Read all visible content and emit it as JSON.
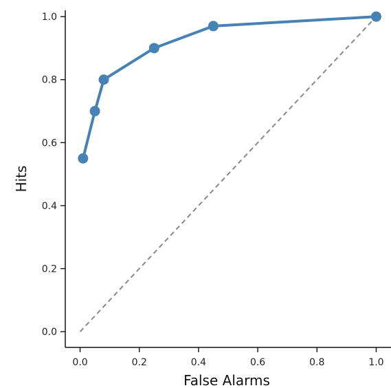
{
  "chart_data": {
    "type": "line",
    "title": "",
    "xlabel": "False Alarms",
    "ylabel": "Hits",
    "xlim": [
      -0.05,
      1.05
    ],
    "ylim": [
      -0.05,
      1.02
    ],
    "xticks": [
      0.0,
      0.2,
      0.4,
      0.6,
      0.8,
      1.0
    ],
    "xtick_labels": [
      "0.0",
      "0.2",
      "0.4",
      "0.6",
      "0.8",
      "1.0"
    ],
    "yticks": [
      0.0,
      0.2,
      0.4,
      0.6,
      0.8,
      1.0
    ],
    "ytick_labels": [
      "0.0",
      "0.2",
      "0.4",
      "0.6",
      "0.8",
      "1.0"
    ],
    "grid": false,
    "legend": "none",
    "series": [
      {
        "x": [
          0.01,
          0.05,
          0.08,
          0.25,
          0.45,
          1.0
        ],
        "y": [
          0.55,
          0.7,
          0.8,
          0.9,
          0.97,
          1.0
        ],
        "color": "#4682b4",
        "style": "solid",
        "markers": true
      },
      {
        "x": [
          0.0,
          1.0
        ],
        "y": [
          0.0,
          1.0
        ],
        "color": "#888888",
        "style": "dashed",
        "markers": false
      }
    ]
  }
}
